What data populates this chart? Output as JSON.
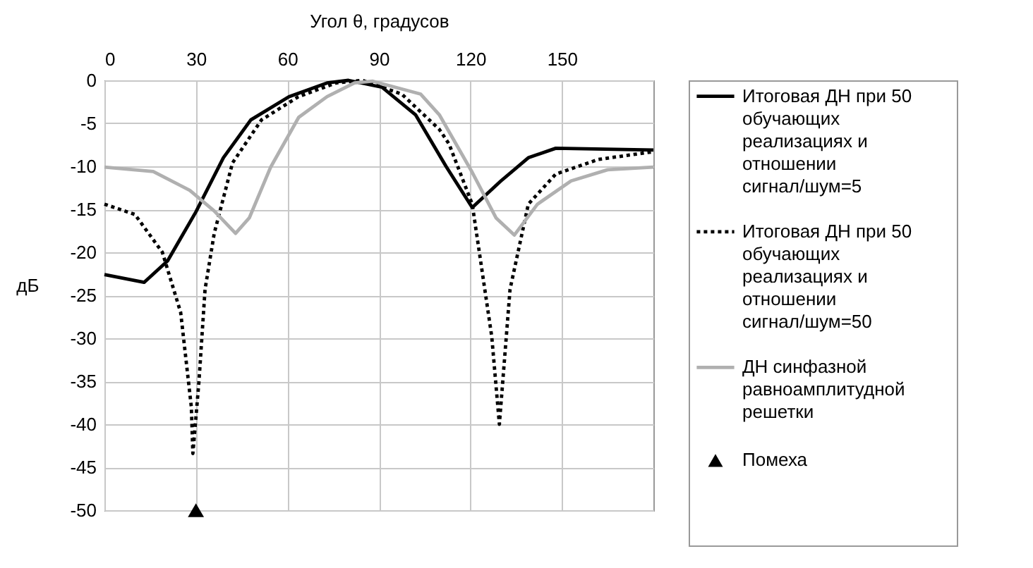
{
  "chart_data": {
    "type": "line",
    "xlabel": "Угол θ, градусов",
    "ylabel": "дБ",
    "xlim": [
      0,
      180
    ],
    "ylim": [
      -50,
      0
    ],
    "xticks": [
      0,
      30,
      60,
      90,
      120,
      150
    ],
    "yticks": [
      0,
      -5,
      -10,
      -15,
      -20,
      -25,
      -30,
      -35,
      -40,
      -45,
      -50
    ],
    "grid": true,
    "legend": "right",
    "series": [
      {
        "name": "Итоговая ДН при 50 обучающих реализациях и отношении сигнал/шум=5",
        "color": "#000000",
        "line_style": "solid",
        "x": [
          0,
          13,
          20.7,
          30,
          39,
          48,
          60.5,
          73,
          80,
          91,
          102,
          112,
          120.6,
          130,
          139,
          148,
          180
        ],
        "values": [
          -22.6,
          -23.5,
          -21,
          -15.3,
          -9,
          -4.6,
          -1.9,
          -0.3,
          0,
          -0.8,
          -4,
          -10,
          -14.8,
          -11.7,
          -9,
          -7.9,
          -8.1
        ]
      },
      {
        "name": "Итоговая ДН при 50 обучающих реализациях и отношении сигнал/шум=50",
        "color": "#000000",
        "line_style": "dotted",
        "x": [
          0,
          10,
          19,
          25,
          28.5,
          29,
          31,
          33,
          36,
          42,
          51.5,
          63.6,
          76,
          84.6,
          97.5,
          109.8,
          113,
          120.6,
          127,
          129.5,
          133,
          139,
          148,
          162,
          180
        ],
        "values": [
          -14.4,
          -15.6,
          -20,
          -27,
          -38,
          -43.4,
          -35,
          -24.3,
          -17.8,
          -9.6,
          -4.6,
          -1.9,
          -0.3,
          0,
          -1.6,
          -5.7,
          -7.4,
          -14.4,
          -29.8,
          -40,
          -24.3,
          -14.4,
          -10.9,
          -9.2,
          -8.3
        ]
      },
      {
        "name": "ДН синфазной равноамплитудной решетки",
        "color": "#b0b0b0",
        "line_style": "solid",
        "x": [
          0,
          16,
          28,
          36,
          43,
          47.5,
          54.5,
          63.7,
          73,
          82,
          88,
          103.7,
          109.8,
          120.6,
          128.4,
          134.4,
          142,
          153,
          165,
          180
        ],
        "values": [
          -10.1,
          -10.6,
          -12.8,
          -15.2,
          -17.8,
          -16,
          -10.1,
          -4.3,
          -1.9,
          -0.3,
          -0.1,
          -1.6,
          -4,
          -10.7,
          -16,
          -18,
          -14.4,
          -11.7,
          -10.4,
          -10.1
        ]
      },
      {
        "name": "Помеха",
        "type": "scatter",
        "marker": "triangle",
        "color": "#000000",
        "x": [
          30
        ],
        "values": [
          -50
        ]
      }
    ]
  }
}
